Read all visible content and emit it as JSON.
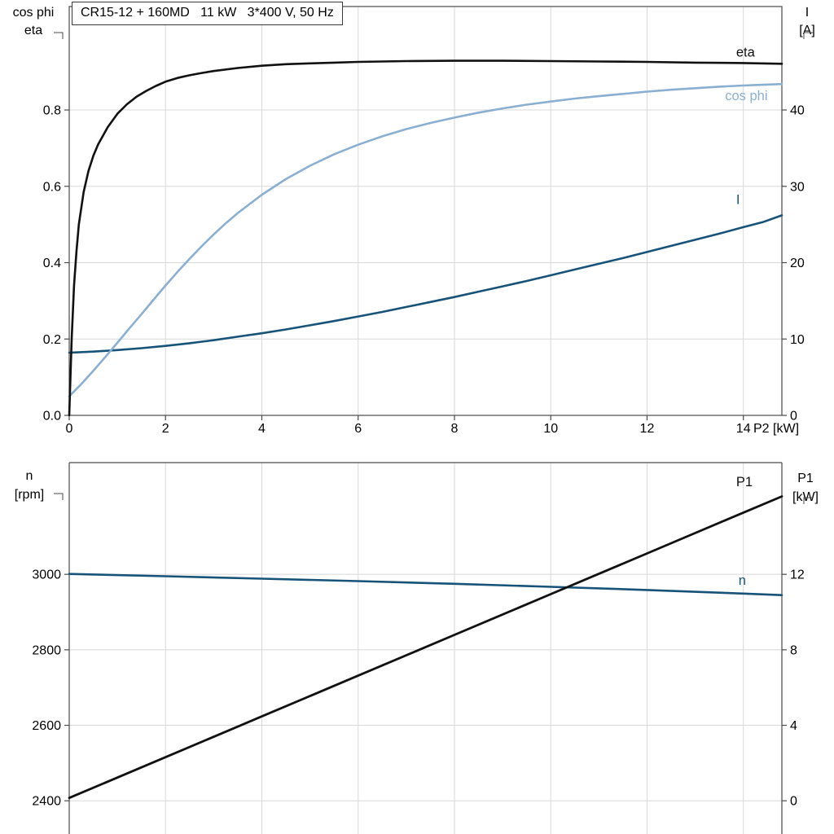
{
  "colors": {
    "black": "#111111",
    "light_blue": "#8aafd2",
    "dark_blue": "#175379",
    "grid": "#d8d8d8",
    "axis": "#4a4a4a",
    "text": "#000000",
    "background": "#ffffff"
  },
  "chart_data": [
    {
      "id": "top",
      "type": "line",
      "title": "CR15-12 + 160MD   11 kW   3*400 V, 50 Hz",
      "x_axis": {
        "label": "P2 [kW]",
        "min": 0,
        "max": 14.8,
        "ticks": [
          {
            "v": 0,
            "label": "0"
          },
          {
            "v": 2,
            "label": "2"
          },
          {
            "v": 4,
            "label": "4"
          },
          {
            "v": 6,
            "label": "6"
          },
          {
            "v": 8,
            "label": "8"
          },
          {
            "v": 10,
            "label": "10"
          },
          {
            "v": 12,
            "label": "12"
          },
          {
            "v": 14,
            "label": "14"
          }
        ]
      },
      "left_axis": {
        "title_lines": [
          "cos phi",
          "eta"
        ],
        "v_bottom": 0,
        "v_top": 1.071,
        "ticks": [
          {
            "v": 0,
            "label": "0.0"
          },
          {
            "v": 0.2,
            "label": "0.2"
          },
          {
            "v": 0.4,
            "label": "0.4"
          },
          {
            "v": 0.6,
            "label": "0.6"
          },
          {
            "v": 0.8,
            "label": "0.8"
          }
        ]
      },
      "right_axis": {
        "title_lines": [
          "I",
          "[A]"
        ],
        "v_bottom": 0,
        "v_top": 53.55,
        "ticks": [
          {
            "v": 0,
            "label": "0"
          },
          {
            "v": 10,
            "label": "10"
          },
          {
            "v": 20,
            "label": "20"
          },
          {
            "v": 30,
            "label": "30"
          },
          {
            "v": 40,
            "label": "40"
          }
        ]
      },
      "series": [
        {
          "name": "I",
          "axis": "right",
          "color": "dark_blue",
          "width": 2.6,
          "label": {
            "text": "I",
            "x": 13.85,
            "v": 27.7
          },
          "points": [
            [
              0,
              8.2
            ],
            [
              0.5,
              8.35
            ],
            [
              1,
              8.55
            ],
            [
              1.5,
              8.8
            ],
            [
              2,
              9.1
            ],
            [
              2.5,
              9.45
            ],
            [
              3,
              9.85
            ],
            [
              3.5,
              10.3
            ],
            [
              4,
              10.75
            ],
            [
              4.5,
              11.25
            ],
            [
              5,
              11.8
            ],
            [
              5.5,
              12.35
            ],
            [
              6,
              12.95
            ],
            [
              6.5,
              13.55
            ],
            [
              7,
              14.2
            ],
            [
              7.5,
              14.85
            ],
            [
              8,
              15.5
            ],
            [
              8.5,
              16.2
            ],
            [
              9,
              16.9
            ],
            [
              9.5,
              17.6
            ],
            [
              10,
              18.35
            ],
            [
              10.5,
              19.1
            ],
            [
              11,
              19.85
            ],
            [
              11.5,
              20.6
            ],
            [
              12,
              21.4
            ],
            [
              12.5,
              22.2
            ],
            [
              13,
              23.0
            ],
            [
              13.5,
              23.8
            ],
            [
              14,
              24.65
            ],
            [
              14.4,
              25.3
            ],
            [
              14.8,
              26.2
            ]
          ]
        },
        {
          "name": "cos_phi",
          "axis": "left",
          "color": "light_blue",
          "width": 2.6,
          "label": {
            "text": "cos phi",
            "x": 13.62,
            "v": 0.826
          },
          "points": [
            [
              0,
              0.05
            ],
            [
              0.25,
              0.082
            ],
            [
              0.5,
              0.117
            ],
            [
              0.75,
              0.153
            ],
            [
              1,
              0.19
            ],
            [
              1.25,
              0.228
            ],
            [
              1.5,
              0.265
            ],
            [
              1.75,
              0.303
            ],
            [
              2,
              0.34
            ],
            [
              2.25,
              0.376
            ],
            [
              2.5,
              0.41
            ],
            [
              2.75,
              0.443
            ],
            [
              3,
              0.474
            ],
            [
              3.25,
              0.503
            ],
            [
              3.5,
              0.53
            ],
            [
              4,
              0.578
            ],
            [
              4.5,
              0.619
            ],
            [
              5,
              0.654
            ],
            [
              5.5,
              0.684
            ],
            [
              6,
              0.709
            ],
            [
              6.5,
              0.731
            ],
            [
              7,
              0.75
            ],
            [
              7.5,
              0.766
            ],
            [
              8,
              0.78
            ],
            [
              8.5,
              0.793
            ],
            [
              9,
              0.804
            ],
            [
              9.5,
              0.814
            ],
            [
              10,
              0.822
            ],
            [
              10.5,
              0.83
            ],
            [
              11,
              0.836
            ],
            [
              11.5,
              0.842
            ],
            [
              12,
              0.848
            ],
            [
              12.5,
              0.853
            ],
            [
              13,
              0.857
            ],
            [
              13.5,
              0.861
            ],
            [
              14,
              0.864
            ],
            [
              14.4,
              0.866
            ],
            [
              14.8,
              0.868
            ]
          ]
        },
        {
          "name": "eta",
          "axis": "left",
          "color": "black",
          "width": 2.6,
          "label": {
            "text": "eta",
            "x": 13.85,
            "v": 0.94
          },
          "points": [
            [
              0,
              0
            ],
            [
              0.05,
              0.2
            ],
            [
              0.1,
              0.34
            ],
            [
              0.15,
              0.43
            ],
            [
              0.2,
              0.5
            ],
            [
              0.3,
              0.585
            ],
            [
              0.4,
              0.64
            ],
            [
              0.5,
              0.68
            ],
            [
              0.6,
              0.71
            ],
            [
              0.8,
              0.755
            ],
            [
              1,
              0.79
            ],
            [
              1.2,
              0.815
            ],
            [
              1.4,
              0.835
            ],
            [
              1.6,
              0.85
            ],
            [
              1.8,
              0.863
            ],
            [
              2,
              0.874
            ],
            [
              2.25,
              0.884
            ],
            [
              2.5,
              0.891
            ],
            [
              2.75,
              0.897
            ],
            [
              3,
              0.902
            ],
            [
              3.5,
              0.91
            ],
            [
              4,
              0.916
            ],
            [
              4.5,
              0.92
            ],
            [
              5,
              0.922
            ],
            [
              5.5,
              0.924
            ],
            [
              6,
              0.926
            ],
            [
              7,
              0.928
            ],
            [
              8,
              0.929
            ],
            [
              9,
              0.929
            ],
            [
              10,
              0.928
            ],
            [
              11,
              0.927
            ],
            [
              12,
              0.926
            ],
            [
              13,
              0.924
            ],
            [
              14,
              0.923
            ],
            [
              14.8,
              0.921
            ]
          ]
        }
      ]
    },
    {
      "id": "bottom",
      "type": "line",
      "x_axis": {
        "label": "",
        "min": 0,
        "max": 14.8,
        "ticks": [
          {
            "v": 0,
            "label": ""
          },
          {
            "v": 2,
            "label": ""
          },
          {
            "v": 4,
            "label": ""
          },
          {
            "v": 6,
            "label": ""
          },
          {
            "v": 8,
            "label": ""
          },
          {
            "v": 10,
            "label": ""
          },
          {
            "v": 12,
            "label": ""
          },
          {
            "v": 14,
            "label": ""
          }
        ]
      },
      "left_axis": {
        "title_lines": [
          "n",
          "[rpm]"
        ],
        "v_bottom": 2312,
        "v_top": 3296,
        "ticks": [
          {
            "v": 2400,
            "label": "2400"
          },
          {
            "v": 2600,
            "label": "2600"
          },
          {
            "v": 2800,
            "label": "2800"
          },
          {
            "v": 3000,
            "label": "3000"
          }
        ]
      },
      "right_axis": {
        "title_lines": [
          "P1",
          "[kW]"
        ],
        "v_bottom": -1.76,
        "v_top": 17.92,
        "ticks": [
          {
            "v": 0,
            "label": "0"
          },
          {
            "v": 4,
            "label": "4"
          },
          {
            "v": 8,
            "label": "8"
          },
          {
            "v": 12,
            "label": "12"
          }
        ]
      },
      "series": [
        {
          "name": "n",
          "axis": "left",
          "color": "dark_blue",
          "width": 2.6,
          "label": {
            "text": "n",
            "x": 13.9,
            "v": 2972
          },
          "points": [
            [
              0,
              3001
            ],
            [
              2,
              2995
            ],
            [
              4,
              2988.5
            ],
            [
              6,
              2982
            ],
            [
              8,
              2975
            ],
            [
              10,
              2967
            ],
            [
              12,
              2958.5
            ],
            [
              14,
              2949
            ],
            [
              14.8,
              2945
            ]
          ]
        },
        {
          "name": "P1",
          "axis": "right",
          "color": "black",
          "width": 2.8,
          "label": {
            "text": "P1",
            "x": 13.85,
            "v": 16.67
          },
          "points": [
            [
              0,
              0.15
            ],
            [
              2,
              2.31
            ],
            [
              4,
              4.47
            ],
            [
              6,
              6.63
            ],
            [
              8,
              8.79
            ],
            [
              10,
              10.95
            ],
            [
              12,
              13.11
            ],
            [
              14,
              15.27
            ],
            [
              14.8,
              16.13
            ]
          ]
        }
      ]
    }
  ]
}
